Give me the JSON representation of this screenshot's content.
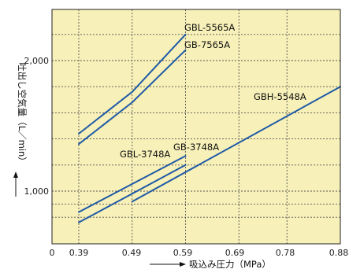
{
  "chart_data": {
    "type": "line",
    "xlabel": "吸込み圧力（MPa）",
    "ylabel": "吐出し空気量（L／min）",
    "x_tick_labels": [
      "0",
      "0.39",
      "0.49",
      "0.59",
      "0.69",
      "0.78",
      "0.88"
    ],
    "y_tick_labels": [
      "1,000",
      "2,000"
    ],
    "xlim": [
      0.39,
      0.88
    ],
    "ylim": [
      700,
      2400
    ],
    "grid": true,
    "background": "#f7f0b8",
    "line_color": "#1f5aa6",
    "series": [
      {
        "name": "GBL-5565A",
        "x": [
          0.39,
          0.49,
          0.59
        ],
        "y": [
          1440,
          1760,
          2200
        ]
      },
      {
        "name": "GB-7565A",
        "x": [
          0.39,
          0.49,
          0.59
        ],
        "y": [
          1360,
          1680,
          2080
        ]
      },
      {
        "name": "GBH-5548A",
        "x": [
          0.49,
          0.88
        ],
        "y": [
          920,
          1800
        ]
      },
      {
        "name": "GBL-3748A",
        "x": [
          0.39,
          0.59
        ],
        "y": [
          840,
          1270
        ]
      },
      {
        "name": "GB-3748A",
        "x": [
          0.39,
          0.59
        ],
        "y": [
          760,
          1200
        ]
      }
    ]
  }
}
